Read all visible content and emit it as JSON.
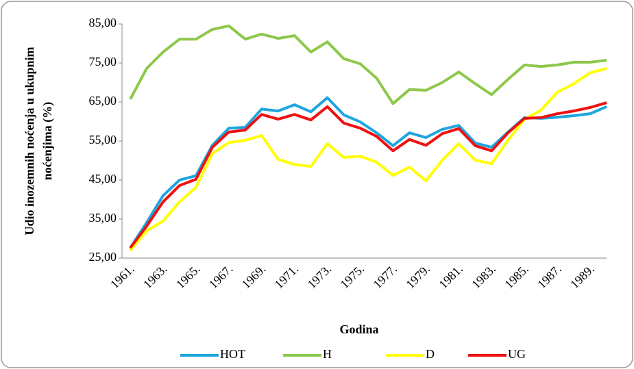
{
  "chart_data": {
    "type": "line",
    "x_label": "Godina",
    "y_label": [
      "Udio inozemnih noćenja u ukupnim",
      "noćenjima (%)"
    ],
    "categories": [
      "1961.",
      null,
      "1963.",
      null,
      "1965.",
      null,
      "1967.",
      null,
      "1969.",
      null,
      "1971.",
      null,
      "1973.",
      null,
      "1975.",
      null,
      "1977.",
      null,
      "1979.",
      null,
      "1981.",
      null,
      "1983.",
      null,
      "1985.",
      null,
      "1987.",
      null,
      "1989.",
      null
    ],
    "series": [
      {
        "name": "HOT",
        "color": "#1ea5e0",
        "values": [
          27.6,
          34.1,
          41.0,
          45.0,
          46.1,
          53.9,
          58.3,
          58.5,
          63.2,
          62.7,
          64.3,
          62.5,
          66.1,
          61.7,
          59.9,
          57.1,
          53.8,
          57.1,
          55.9,
          58.0,
          59.0,
          54.5,
          53.4,
          57.3,
          61.0,
          60.8,
          61.1,
          61.5,
          62.0,
          63.8
        ]
      },
      {
        "name": "H",
        "color": "#8dc84b",
        "values": [
          65.7,
          73.6,
          77.8,
          81.1,
          81.1,
          83.6,
          84.5,
          81.1,
          82.4,
          81.3,
          82.0,
          77.8,
          80.4,
          76.1,
          74.8,
          71.1,
          64.6,
          68.2,
          68.0,
          70.0,
          72.7,
          69.7,
          66.9,
          70.8,
          74.5,
          74.1,
          74.5,
          75.2,
          75.2,
          75.7
        ]
      },
      {
        "name": "D",
        "color": "#ffff00",
        "values": [
          26.9,
          32.0,
          34.5,
          39.4,
          43.1,
          51.8,
          54.6,
          55.2,
          56.4,
          50.3,
          49.0,
          48.5,
          54.3,
          50.8,
          51.1,
          49.6,
          46.2,
          48.3,
          44.8,
          50.1,
          54.3,
          50.1,
          49.2,
          55.2,
          60.6,
          62.9,
          67.5,
          69.7,
          72.5,
          73.6
        ]
      },
      {
        "name": "UG",
        "color": "#ee1111",
        "values": [
          27.6,
          33.2,
          39.4,
          43.6,
          45.2,
          53.4,
          57.3,
          57.8,
          61.8,
          60.6,
          61.8,
          60.4,
          63.8,
          59.6,
          58.3,
          56.2,
          52.5,
          55.4,
          53.9,
          56.9,
          58.2,
          53.8,
          52.5,
          57.1,
          60.8,
          61.0,
          62.0,
          62.7,
          63.6,
          64.8
        ]
      }
    ],
    "ylim": [
      25,
      85
    ],
    "yticks": [
      {
        "value": 25,
        "label": "25,00"
      },
      {
        "value": 35,
        "label": "35,00"
      },
      {
        "value": 45,
        "label": "45,00"
      },
      {
        "value": 55,
        "label": "55,00"
      },
      {
        "value": 65,
        "label": "65,00"
      },
      {
        "value": 75,
        "label": "75,00"
      },
      {
        "value": 85,
        "label": "85,00"
      }
    ],
    "grid": false,
    "legend": "bottom"
  }
}
